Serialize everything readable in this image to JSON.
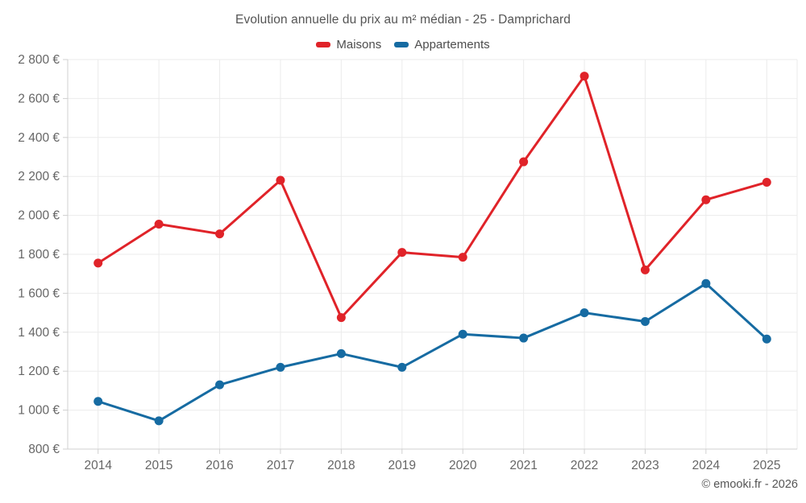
{
  "page": {
    "copyright": "© emooki.fr - 2026"
  },
  "chart_data": {
    "type": "line",
    "title": "Evolution annuelle du prix au m² médian - 25 - Damprichard",
    "x": [
      2014,
      2015,
      2016,
      2017,
      2018,
      2019,
      2020,
      2021,
      2022,
      2023,
      2024,
      2025
    ],
    "series": [
      {
        "name": "Maisons",
        "color": "#e02329",
        "values": [
          1755,
          1955,
          1905,
          2180,
          1475,
          1810,
          1785,
          2275,
          2715,
          1720,
          2080,
          2170
        ]
      },
      {
        "name": "Appartements",
        "color": "#166ba2",
        "values": [
          1045,
          945,
          1130,
          1220,
          1290,
          1220,
          1390,
          1370,
          1500,
          1455,
          1650,
          1365
        ]
      }
    ],
    "ylim": [
      800,
      2800
    ],
    "ytick_step": 200,
    "ytick_labels": [
      "800 €",
      "1 000 €",
      "1 200 €",
      "1 400 €",
      "1 600 €",
      "1 800 €",
      "2 000 €",
      "2 200 €",
      "2 400 €",
      "2 600 €",
      "2 800 €"
    ],
    "grid": true,
    "legend_position": "top",
    "colors": {
      "grid": "#ebebeb",
      "axis": "#d0d0d0",
      "tick_text": "#666666",
      "title_text": "#555555"
    }
  }
}
